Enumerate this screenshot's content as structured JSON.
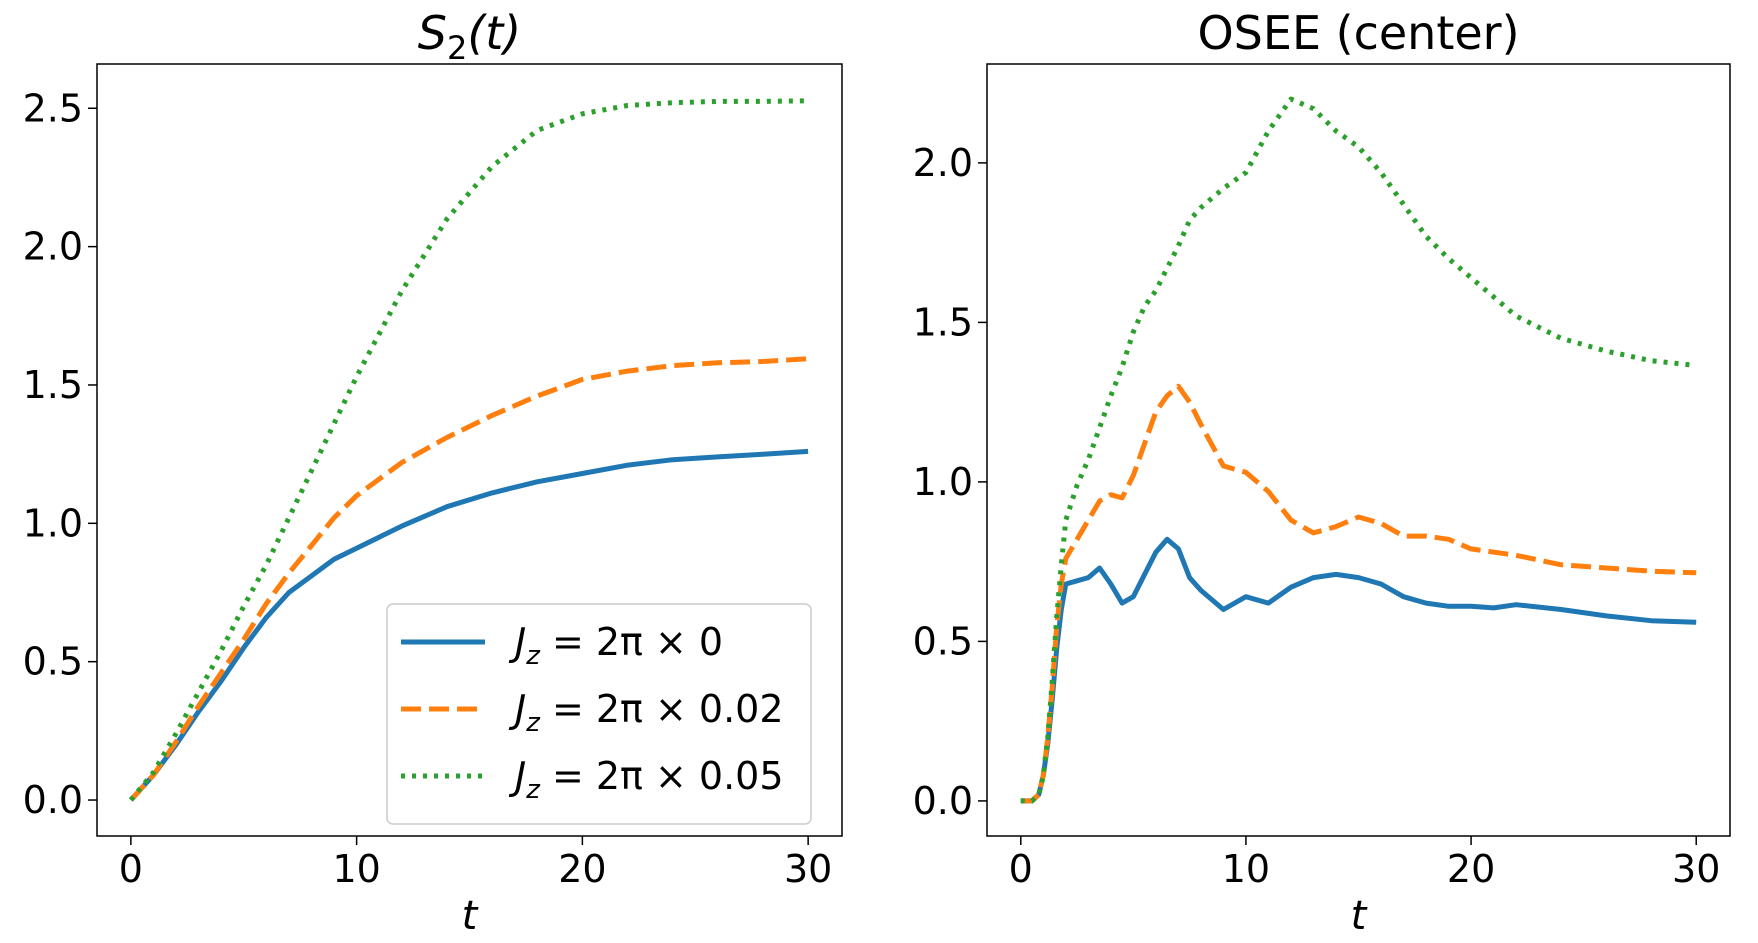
{
  "chart_data": [
    {
      "type": "line",
      "title_main": "S",
      "title_sub": "2",
      "title_rest": "(t)",
      "xlabel": "t",
      "ylabel": "",
      "xlim": [
        -1.5,
        31.5
      ],
      "ylim": [
        -0.13,
        2.66
      ],
      "xticks": [
        {
          "value": 0,
          "label": "0"
        },
        {
          "value": 10,
          "label": "10"
        },
        {
          "value": 20,
          "label": "20"
        },
        {
          "value": 30,
          "label": "30"
        }
      ],
      "yticks": [
        {
          "value": 0,
          "label": "0.0"
        },
        {
          "value": 0.5,
          "label": "0.5"
        },
        {
          "value": 1.0,
          "label": "1.0"
        },
        {
          "value": 1.5,
          "label": "1.5"
        },
        {
          "value": 2.0,
          "label": "2.0"
        },
        {
          "value": 2.5,
          "label": "2.5"
        }
      ],
      "legend": "lower-right",
      "series": [
        {
          "name": "J_z = 2π × 0",
          "label_pre": "J",
          "label_sub": "z",
          "label_post": " = 2π × 0",
          "color": "#1f77b4",
          "dash": "solid",
          "x": [
            0,
            1,
            2,
            3,
            4,
            5,
            6,
            7,
            8,
            9,
            10,
            12,
            14,
            16,
            18,
            20,
            22,
            24,
            26,
            28,
            30
          ],
          "y": [
            0,
            0.09,
            0.2,
            0.32,
            0.43,
            0.55,
            0.66,
            0.75,
            0.81,
            0.87,
            0.91,
            0.99,
            1.06,
            1.11,
            1.15,
            1.18,
            1.21,
            1.23,
            1.24,
            1.25,
            1.26
          ]
        },
        {
          "name": "J_z = 2π × 0.02",
          "label_pre": "J",
          "label_sub": "z",
          "label_post": " = 2π × 0.02",
          "color": "#ff7f0e",
          "dash": "dashed",
          "x": [
            0,
            1,
            2,
            3,
            4,
            5,
            6,
            7,
            8,
            9,
            10,
            12,
            14,
            16,
            18,
            20,
            22,
            24,
            26,
            28,
            30
          ],
          "y": [
            0,
            0.09,
            0.21,
            0.34,
            0.46,
            0.58,
            0.71,
            0.82,
            0.92,
            1.02,
            1.1,
            1.22,
            1.31,
            1.39,
            1.46,
            1.52,
            1.55,
            1.57,
            1.58,
            1.585,
            1.595
          ]
        },
        {
          "name": "J_z = 2π × 0.05",
          "label_pre": "J",
          "label_sub": "z",
          "label_post": " = 2π × 0.05",
          "color": "#2ca02c",
          "dash": "dotted",
          "x": [
            0,
            1,
            2,
            3,
            4,
            5,
            6,
            7,
            8,
            9,
            10,
            12,
            14,
            16,
            18,
            20,
            22,
            24,
            26,
            28,
            30
          ],
          "y": [
            0,
            0.1,
            0.24,
            0.39,
            0.54,
            0.7,
            0.85,
            1.02,
            1.19,
            1.36,
            1.53,
            1.84,
            2.1,
            2.29,
            2.42,
            2.48,
            2.51,
            2.52,
            2.525,
            2.525,
            2.527
          ]
        }
      ]
    },
    {
      "type": "line",
      "title_main": "OSEE (center)",
      "title_sub": "",
      "title_rest": "",
      "xlabel": "t",
      "ylabel": "",
      "xlim": [
        -1.5,
        31.5
      ],
      "ylim": [
        -0.11,
        2.31
      ],
      "xticks": [
        {
          "value": 0,
          "label": "0"
        },
        {
          "value": 10,
          "label": "10"
        },
        {
          "value": 20,
          "label": "20"
        },
        {
          "value": 30,
          "label": "30"
        }
      ],
      "yticks": [
        {
          "value": 0,
          "label": "0.0"
        },
        {
          "value": 0.5,
          "label": "0.5"
        },
        {
          "value": 1.0,
          "label": "1.0"
        },
        {
          "value": 1.5,
          "label": "1.5"
        },
        {
          "value": 2.0,
          "label": "2.0"
        }
      ],
      "series": [
        {
          "name": "J_z = 2π × 0",
          "color": "#1f77b4",
          "dash": "solid",
          "x": [
            0,
            0.5,
            0.8,
            1.0,
            1.2,
            1.4,
            1.6,
            1.8,
            2.0,
            2.5,
            3.0,
            3.5,
            4.0,
            4.5,
            5.0,
            5.5,
            6.0,
            6.5,
            7.0,
            7.5,
            8.0,
            9.0,
            10.0,
            11.0,
            12.0,
            13.0,
            14.0,
            15.0,
            16.0,
            17.0,
            18.0,
            19.0,
            20.0,
            21.0,
            22.0,
            24.0,
            26.0,
            28.0,
            30.0
          ],
          "y": [
            0,
            0,
            0.02,
            0.08,
            0.18,
            0.32,
            0.48,
            0.6,
            0.68,
            0.69,
            0.7,
            0.73,
            0.68,
            0.62,
            0.64,
            0.71,
            0.78,
            0.82,
            0.79,
            0.7,
            0.66,
            0.6,
            0.64,
            0.62,
            0.67,
            0.7,
            0.71,
            0.7,
            0.68,
            0.64,
            0.62,
            0.61,
            0.61,
            0.605,
            0.615,
            0.6,
            0.58,
            0.565,
            0.56
          ]
        },
        {
          "name": "J_z = 2π × 0.02",
          "color": "#ff7f0e",
          "dash": "dashed",
          "x": [
            0,
            0.5,
            0.8,
            1.0,
            1.2,
            1.4,
            1.6,
            1.8,
            2.0,
            2.5,
            3.0,
            3.5,
            4.0,
            4.5,
            5.0,
            5.5,
            6.0,
            6.5,
            7.0,
            7.5,
            8.0,
            9.0,
            10.0,
            11.0,
            12.0,
            13.0,
            14.0,
            15.0,
            16.0,
            17.0,
            18.0,
            19.0,
            20.0,
            22.0,
            24.0,
            26.0,
            28.0,
            30.0
          ],
          "y": [
            0,
            0,
            0.02,
            0.08,
            0.2,
            0.36,
            0.55,
            0.68,
            0.76,
            0.82,
            0.88,
            0.94,
            0.96,
            0.95,
            1.02,
            1.12,
            1.22,
            1.27,
            1.3,
            1.25,
            1.18,
            1.05,
            1.03,
            0.97,
            0.88,
            0.84,
            0.86,
            0.89,
            0.87,
            0.83,
            0.83,
            0.82,
            0.79,
            0.77,
            0.74,
            0.73,
            0.72,
            0.715
          ]
        },
        {
          "name": "J_z = 2π × 0.05",
          "color": "#2ca02c",
          "dash": "dotted",
          "x": [
            0,
            0.5,
            0.8,
            1.0,
            1.2,
            1.4,
            1.6,
            1.8,
            2.0,
            2.5,
            3.0,
            3.5,
            4.0,
            4.5,
            5.0,
            5.5,
            6.0,
            6.5,
            7.0,
            7.5,
            8.0,
            9.0,
            10.0,
            11.0,
            12.0,
            13.0,
            14.0,
            15.0,
            16.0,
            17.0,
            18.0,
            19.0,
            20.0,
            22.0,
            24.0,
            26.0,
            28.0,
            30.0
          ],
          "y": [
            0,
            0,
            0.02,
            0.08,
            0.2,
            0.38,
            0.58,
            0.74,
            0.88,
            0.99,
            1.07,
            1.17,
            1.27,
            1.36,
            1.47,
            1.55,
            1.6,
            1.67,
            1.74,
            1.82,
            1.86,
            1.92,
            1.97,
            2.1,
            2.2,
            2.17,
            2.1,
            2.05,
            1.97,
            1.87,
            1.77,
            1.7,
            1.64,
            1.52,
            1.45,
            1.41,
            1.38,
            1.365
          ]
        }
      ]
    }
  ]
}
